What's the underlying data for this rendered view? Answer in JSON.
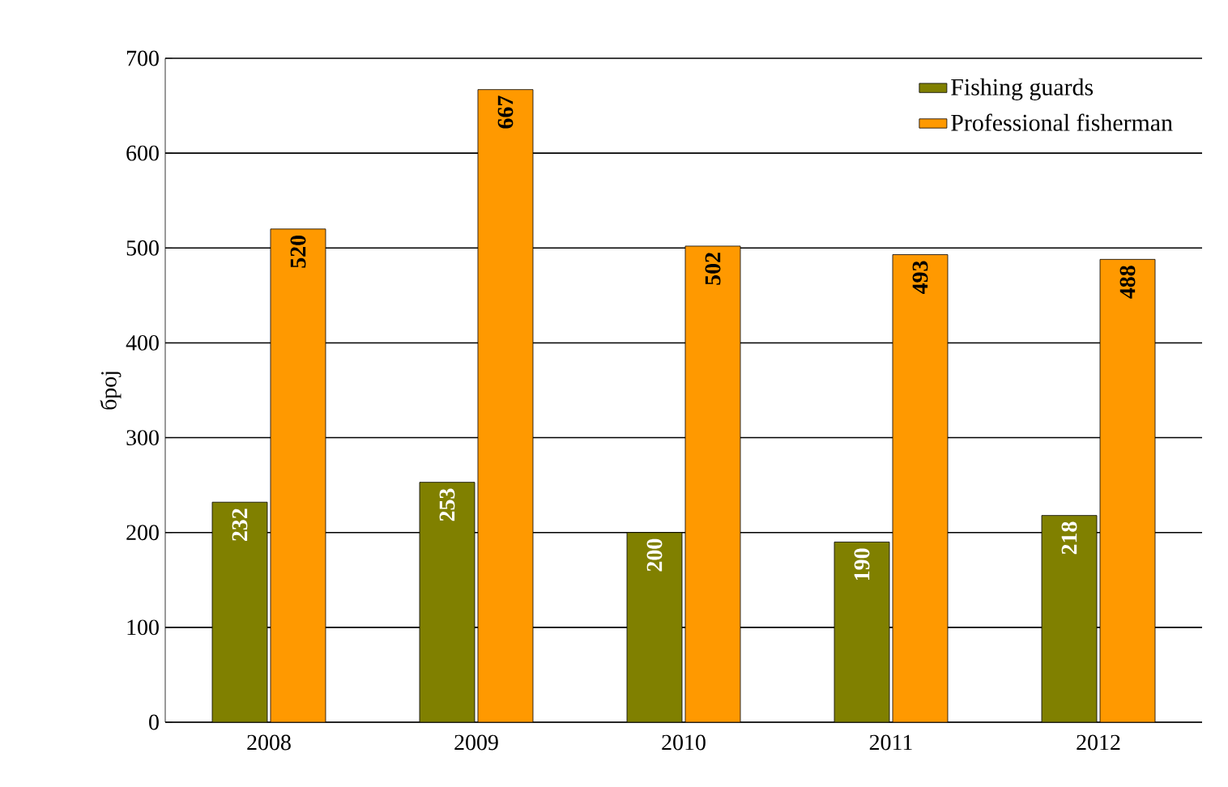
{
  "chart_data": {
    "type": "bar",
    "ylabel": "број",
    "categories": [
      "2008",
      "2009",
      "2010",
      "2011",
      "2012"
    ],
    "series": [
      {
        "name": "Fishing guards",
        "color": "#808000",
        "values": [
          232,
          253,
          200,
          190,
          218
        ]
      },
      {
        "name": "Professional fisherman",
        "color": "#ff9900",
        "values": [
          520,
          667,
          502,
          493,
          488
        ]
      }
    ],
    "ylim": [
      0,
      700
    ],
    "yticks": [
      0,
      100,
      200,
      300,
      400,
      500,
      600,
      700
    ],
    "grid": "y",
    "legend": "top right",
    "data_labels": true
  }
}
